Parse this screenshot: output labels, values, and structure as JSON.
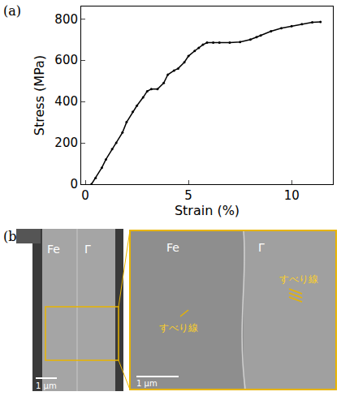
{
  "chart_data": {
    "type": "line",
    "x_label": "Strain (%)",
    "y_label": "Stress (MPa)",
    "x": [
      0.3,
      0.5,
      0.8,
      1.0,
      1.3,
      1.5,
      1.8,
      2.0,
      2.3,
      2.5,
      2.8,
      3.0,
      3.2,
      3.5,
      3.8,
      4.0,
      4.3,
      4.5,
      4.8,
      5.0,
      5.3,
      5.5,
      5.7,
      5.9,
      6.2,
      6.5,
      7.0,
      7.5,
      8.0,
      8.3,
      8.5,
      9.0,
      9.5,
      10.0,
      10.5,
      11.0,
      11.4
    ],
    "values": [
      0,
      30,
      80,
      120,
      170,
      200,
      250,
      300,
      350,
      380,
      420,
      450,
      460,
      460,
      490,
      530,
      550,
      560,
      590,
      620,
      645,
      660,
      675,
      685,
      685,
      685,
      685,
      688,
      700,
      712,
      720,
      740,
      755,
      765,
      775,
      783,
      785
    ],
    "color": "#000000",
    "marker": "circle",
    "line_style": "solid",
    "xlim": [
      -0.2,
      12
    ],
    "xticks": [
      0,
      5,
      10
    ],
    "ylim": [
      0,
      860
    ],
    "yticks": [
      0,
      200,
      400,
      600,
      800
    ],
    "grid": false
  },
  "panels": {
    "a": {
      "label": "(a)"
    },
    "b": {
      "label": "(b)",
      "overview": {
        "labels": [
          "Fe",
          "Γ"
        ],
        "scale_bar": "1 μm"
      },
      "zoom": {
        "labels": [
          "Fe",
          "Γ"
        ],
        "annotations": [
          "すべり線",
          "すべり線"
        ],
        "scale_bar": "1 μm"
      }
    }
  }
}
